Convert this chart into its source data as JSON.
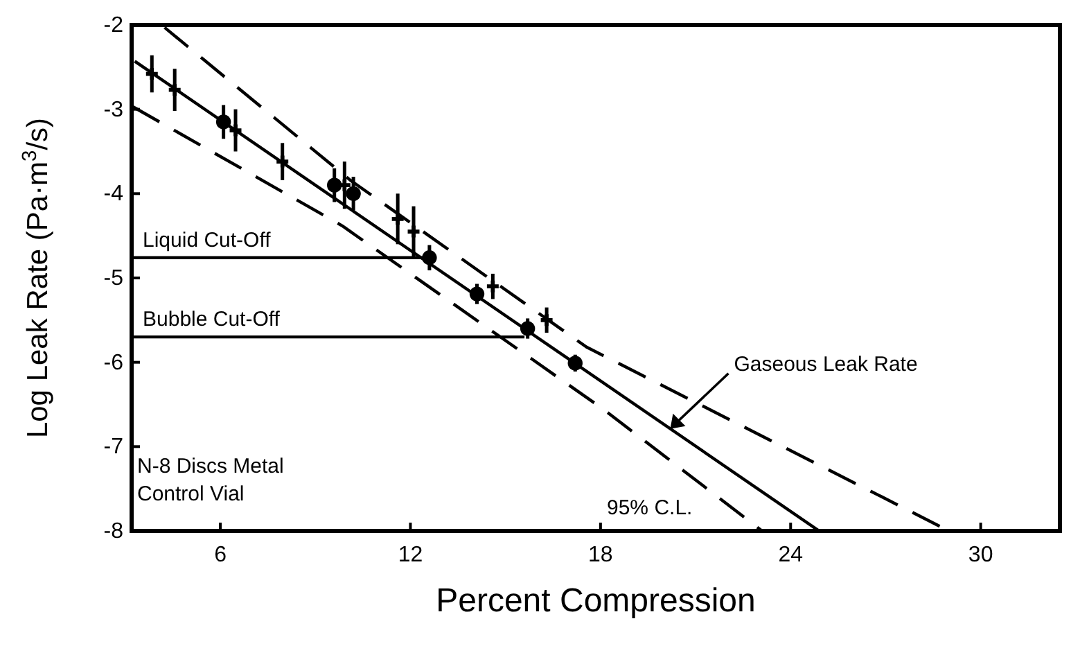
{
  "chart_data": {
    "type": "scatter",
    "xlabel": "Percent Compression",
    "ylabel": "Log Leak Rate (Pa·m$^{3}$/s)",
    "xlim": [
      3.2,
      32.5
    ],
    "ylim": [
      -8,
      -2
    ],
    "xticks": [
      6,
      12,
      18,
      24,
      30
    ],
    "yticks": [
      -8,
      -7,
      -6,
      -5,
      -4,
      -3,
      -2
    ],
    "grid": false,
    "series": [
      {
        "marker": "circle",
        "color": "#000000",
        "x": [
          6.1,
          9.6,
          10.2,
          12.6,
          14.1,
          15.7,
          17.2
        ],
        "values": [
          -3.15,
          -3.9,
          -4.0,
          -4.76,
          -5.19,
          -5.6,
          -6.01
        ],
        "errors": [
          0.2,
          0.2,
          0.2,
          0.15,
          0.12,
          0.12,
          0.1
        ]
      },
      {
        "marker": "cross",
        "color": "#000000",
        "x": [
          3.84,
          4.56,
          6.48,
          7.96,
          9.92,
          11.6,
          12.1,
          14.6,
          16.3
        ],
        "values": [
          -2.58,
          -2.77,
          -3.25,
          -3.62,
          -3.9,
          -4.3,
          -4.45,
          -5.1,
          -5.5
        ],
        "errors": [
          0.22,
          0.25,
          0.25,
          0.22,
          0.28,
          0.3,
          0.3,
          0.15,
          0.15
        ]
      },
      {
        "type": "line",
        "line_style": "solid",
        "color": "#000000",
        "x": [
          3.3,
          24.9
        ],
        "values": [
          -2.43,
          -8
        ]
      },
      {
        "type": "line",
        "line_style": "dashed",
        "color": "#000000",
        "x": [
          4.24,
          10.1,
          17.56,
          29
        ],
        "values": [
          -2.03,
          -3.84,
          -5.82,
          -8
        ]
      },
      {
        "type": "line",
        "line_style": "dashed",
        "color": "#000000",
        "x": [
          3.24,
          9.84,
          18.1,
          23.1
        ],
        "values": [
          -2.97,
          -4.38,
          -6.56,
          -8
        ]
      },
      {
        "type": "line",
        "line_style": "solid",
        "name": "Liquid Cut-Off",
        "color": "#000000",
        "x": [
          3.2,
          12.6
        ],
        "values": [
          -4.76,
          -4.76
        ]
      },
      {
        "type": "line",
        "line_style": "solid",
        "name": "Bubble Cut-Off",
        "color": "#000000",
        "x": [
          3.2,
          15.6
        ],
        "values": [
          -5.7,
          -5.7
        ]
      }
    ],
    "annotations": [
      {
        "text": "Gaseous Leak Rate",
        "x": 20.2,
        "y": -6.79
      },
      "N-8 Discs Metal\nControl Vial",
      "95% C.L."
    ]
  }
}
